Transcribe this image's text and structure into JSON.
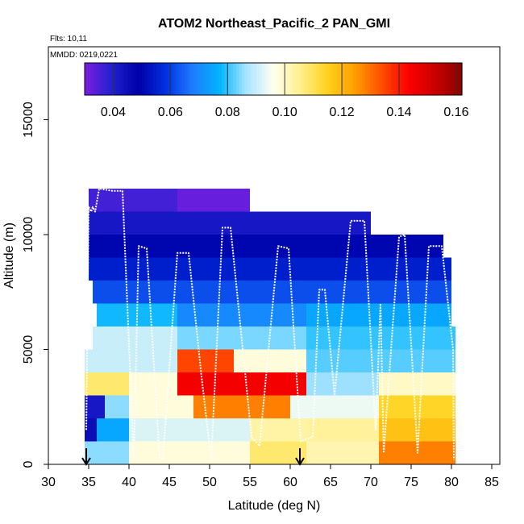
{
  "chart_data": {
    "type": "heatmap",
    "title": "ATOM2 Northeast_Pacific_2 PAN_GMI",
    "flights_note": "Flts: 10,11",
    "date_note": "MMDD: 0219,0221",
    "xlabel": "Latitude (deg N)",
    "ylabel": "Altitude (m)",
    "xlim": [
      30,
      85
    ],
    "ylim": [
      0,
      18000
    ],
    "x_ticks": [
      "30",
      "35",
      "40",
      "45",
      "50",
      "55",
      "60",
      "65",
      "70",
      "75",
      "80",
      "85"
    ],
    "y_ticks": [
      "0",
      "5000",
      "10000",
      "15000"
    ],
    "colorbar": {
      "range": [
        0.03,
        0.162
      ],
      "ticks": [
        "0.04",
        "0.06",
        "0.08",
        "0.10",
        "0.12",
        "0.14",
        "0.16"
      ],
      "colors": [
        "#7B1FE0",
        "#2020D0",
        "#0000A8",
        "#0030E0",
        "#1E7BFF",
        "#00B4FF",
        "#A8E4FF",
        "#FFFFF0",
        "#FFF08C",
        "#FFD21E",
        "#FFA000",
        "#FF5000",
        "#FF0000",
        "#C80000",
        "#8B0000"
      ]
    },
    "markers": [
      {
        "x": 34.7,
        "label": "arrow"
      },
      {
        "x": 61.2,
        "label": "arrow"
      }
    ],
    "grid": false,
    "legend": "colorbar top",
    "altitude_rows_m": [
      500,
      1500,
      2500,
      3500,
      4500,
      5500,
      6500,
      7500,
      8500,
      9500,
      10500,
      11500
    ],
    "cells": [
      {
        "alt": 500,
        "x0": 34.5,
        "x1": 40,
        "v": 0.085
      },
      {
        "alt": 500,
        "x0": 40,
        "x1": 55,
        "v": 0.098
      },
      {
        "alt": 500,
        "x0": 55,
        "x1": 62,
        "v": 0.108
      },
      {
        "alt": 500,
        "x0": 62,
        "x1": 71,
        "v": 0.102
      },
      {
        "alt": 500,
        "x0": 71,
        "x1": 80.5,
        "v": 0.128
      },
      {
        "alt": 1500,
        "x0": 34.5,
        "x1": 36,
        "v": 0.045
      },
      {
        "alt": 1500,
        "x0": 36,
        "x1": 40,
        "v": 0.075
      },
      {
        "alt": 1500,
        "x0": 40,
        "x1": 55,
        "v": 0.092
      },
      {
        "alt": 1500,
        "x0": 55,
        "x1": 62,
        "v": 0.103
      },
      {
        "alt": 1500,
        "x0": 62,
        "x1": 71,
        "v": 0.104
      },
      {
        "alt": 1500,
        "x0": 71,
        "x1": 80.5,
        "v": 0.118
      },
      {
        "alt": 2500,
        "x0": 34.5,
        "x1": 37,
        "v": 0.042
      },
      {
        "alt": 2500,
        "x0": 37,
        "x1": 40,
        "v": 0.085
      },
      {
        "alt": 2500,
        "x0": 40,
        "x1": 48,
        "v": 0.098
      },
      {
        "alt": 2500,
        "x0": 48,
        "x1": 60,
        "v": 0.128
      },
      {
        "alt": 2500,
        "x0": 60,
        "x1": 71,
        "v": 0.094
      },
      {
        "alt": 2500,
        "x0": 71,
        "x1": 80.5,
        "v": 0.114
      },
      {
        "alt": 3500,
        "x0": 34.5,
        "x1": 40,
        "v": 0.108
      },
      {
        "alt": 3500,
        "x0": 40,
        "x1": 46,
        "v": 0.098
      },
      {
        "alt": 3500,
        "x0": 46,
        "x1": 62,
        "v": 0.145
      },
      {
        "alt": 3500,
        "x0": 62,
        "x1": 71,
        "v": 0.086
      },
      {
        "alt": 3500,
        "x0": 71,
        "x1": 80.5,
        "v": 0.1
      },
      {
        "alt": 4500,
        "x0": 34.5,
        "x1": 40,
        "v": 0.09
      },
      {
        "alt": 4500,
        "x0": 40,
        "x1": 46,
        "v": 0.09
      },
      {
        "alt": 4500,
        "x0": 46,
        "x1": 53,
        "v": 0.135
      },
      {
        "alt": 4500,
        "x0": 53,
        "x1": 62,
        "v": 0.098
      },
      {
        "alt": 4500,
        "x0": 62,
        "x1": 80.5,
        "v": 0.082
      },
      {
        "alt": 5500,
        "x0": 35.5,
        "x1": 46,
        "v": 0.09
      },
      {
        "alt": 5500,
        "x0": 46,
        "x1": 62,
        "v": 0.084
      },
      {
        "alt": 5500,
        "x0": 62,
        "x1": 80.5,
        "v": 0.08
      },
      {
        "alt": 6500,
        "x0": 36,
        "x1": 46,
        "v": 0.078
      },
      {
        "alt": 6500,
        "x0": 46,
        "x1": 62,
        "v": 0.07
      },
      {
        "alt": 6500,
        "x0": 62,
        "x1": 80,
        "v": 0.075
      },
      {
        "alt": 7500,
        "x0": 35.5,
        "x1": 80,
        "v": 0.062
      },
      {
        "alt": 8500,
        "x0": 35,
        "x1": 80,
        "v": 0.055
      },
      {
        "alt": 9500,
        "x0": 35,
        "x1": 79,
        "v": 0.05
      },
      {
        "alt": 10500,
        "x0": 35,
        "x1": 70,
        "v": 0.042
      },
      {
        "alt": 11500,
        "x0": 35,
        "x1": 46,
        "v": 0.036
      },
      {
        "alt": 11500,
        "x0": 46,
        "x1": 55,
        "v": 0.032
      }
    ],
    "flight_track": [
      [
        34.7,
        1500
      ],
      [
        35,
        11200
      ],
      [
        35.3,
        11000
      ],
      [
        35.5,
        11200
      ],
      [
        35.8,
        11000
      ],
      [
        36.3,
        12000
      ],
      [
        38,
        11900
      ],
      [
        39.2,
        11900
      ],
      [
        40.6,
        200
      ],
      [
        41.2,
        9500
      ],
      [
        42.2,
        9400
      ],
      [
        43.8,
        300
      ],
      [
        44.2,
        200
      ],
      [
        46,
        9200
      ],
      [
        47.4,
        9200
      ],
      [
        49,
        3800
      ],
      [
        50.2,
        200
      ],
      [
        51.6,
        10300
      ],
      [
        52.6,
        10300
      ],
      [
        55.2,
        1200
      ],
      [
        56.2,
        800
      ],
      [
        58.5,
        9500
      ],
      [
        59.8,
        9400
      ],
      [
        60.8,
        3800
      ],
      [
        61.3,
        1000
      ],
      [
        62.8,
        1200
      ],
      [
        63.6,
        7600
      ],
      [
        64.3,
        7600
      ],
      [
        65.5,
        3000
      ],
      [
        67.5,
        10600
      ],
      [
        69.2,
        10600
      ],
      [
        70.6,
        1500
      ],
      [
        71.2,
        7000
      ],
      [
        71.6,
        500
      ],
      [
        73.5,
        9900
      ],
      [
        74.2,
        10000
      ],
      [
        75.8,
        500
      ],
      [
        77.2,
        9500
      ],
      [
        78.8,
        9500
      ],
      [
        80.2,
        5000
      ],
      [
        80.3,
        200
      ]
    ]
  }
}
